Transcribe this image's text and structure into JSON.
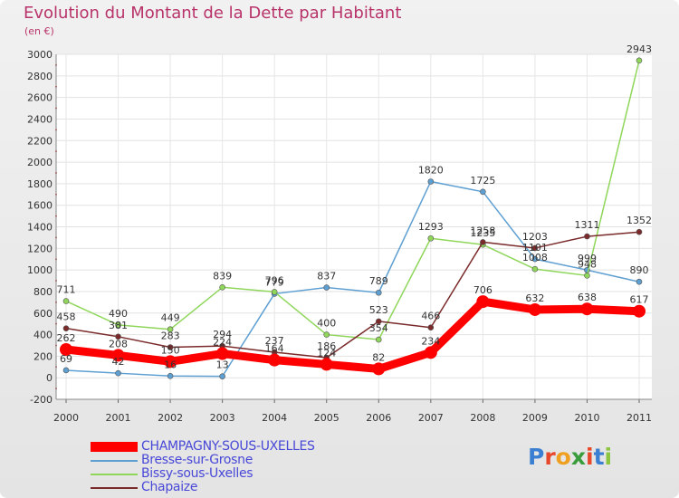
{
  "title": "Evolution du Montant de la Dette par Habitant",
  "subtitle": "(en €)",
  "logo_text": "Proxiti",
  "chart_data": {
    "type": "line",
    "title": "Evolution du Montant de la Dette par Habitant",
    "ylabel": "(en €)",
    "xlabel": "",
    "categories": [
      "2000",
      "2001",
      "2002",
      "2003",
      "2004",
      "2005",
      "2006",
      "2007",
      "2008",
      "2009",
      "2010",
      "2011"
    ],
    "ylim": [
      -200,
      3000
    ],
    "yticks": [
      -200,
      0,
      200,
      400,
      600,
      800,
      1000,
      1200,
      1400,
      1600,
      1800,
      2000,
      2200,
      2400,
      2600,
      2800,
      3000
    ],
    "grid": true,
    "legend_position": "bottom-left",
    "series": [
      {
        "name": "CHAMPAGNY-SOUS-UXELLES",
        "color": "#ff0000",
        "values": [
          262,
          208,
          150,
          224,
          164,
          124,
          82,
          234,
          706,
          632,
          638,
          617
        ]
      },
      {
        "name": "Bresse-sur-Grosne",
        "color": "#5e9fd2",
        "values": [
          69,
          42,
          16,
          13,
          779,
          837,
          789,
          1820,
          1725,
          1101,
          999,
          890
        ]
      },
      {
        "name": "Bissy-sous-Uxelles",
        "color": "#8fd65a",
        "values": [
          711,
          490,
          449,
          839,
          796,
          400,
          354,
          1293,
          1235,
          1008,
          948,
          2943
        ]
      },
      {
        "name": "Chapaize",
        "color": "#7a2a2a",
        "values": [
          458,
          381,
          283,
          294,
          237,
          186,
          523,
          466,
          1258,
          1203,
          1311,
          1352
        ]
      }
    ]
  }
}
